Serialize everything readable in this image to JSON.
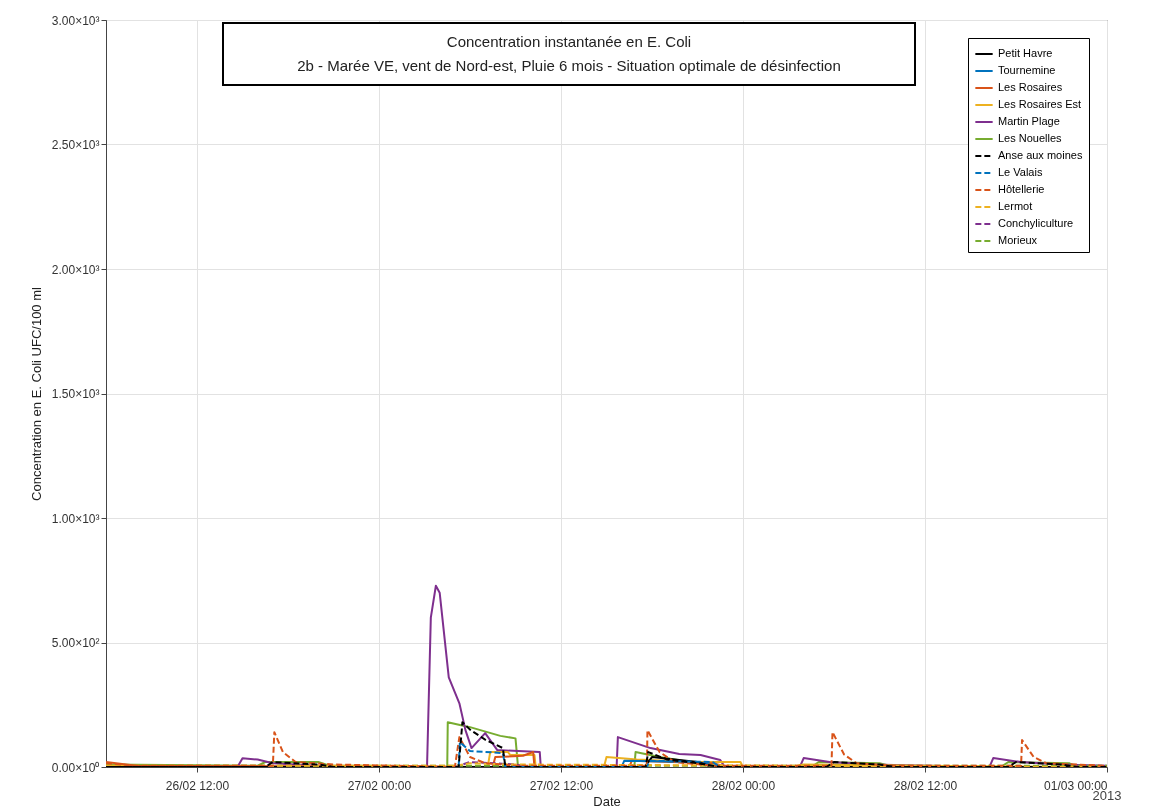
{
  "chart_data": {
    "type": "line",
    "title": "Concentration instantanée en E. Coli",
    "subtitle": "2b - Marée VE, vent de Nord-est, Pluie 6 mois - Situation optimale de désinfection",
    "xlabel": "Date",
    "ylabel": "Concentration en E. Coli UFC/100 ml",
    "annotations": [
      "2013"
    ],
    "xlim": [
      "2013-02-26T06:00",
      "2013-03-01T00:00"
    ],
    "xticks": [
      {
        "value": "2013-02-26T12:00",
        "label": "26/02 12:00"
      },
      {
        "value": "2013-02-27T00:00",
        "label": "27/02 00:00"
      },
      {
        "value": "2013-02-27T12:00",
        "label": "27/02 12:00"
      },
      {
        "value": "2013-02-28T00:00",
        "label": "28/02 00:00"
      },
      {
        "value": "2013-02-28T12:00",
        "label": "28/02 12:00"
      },
      {
        "value": "2013-03-01T00:00",
        "label": "01/03 00:00"
      }
    ],
    "ylim": [
      0,
      3000
    ],
    "yticks": [
      {
        "value": 0,
        "label": "0.00×10⁰"
      },
      {
        "value": 500,
        "label": "5.00×10²"
      },
      {
        "value": 1000,
        "label": "1.00×10³"
      },
      {
        "value": 1500,
        "label": "1.50×10³"
      },
      {
        "value": 2000,
        "label": "2.00×10³"
      },
      {
        "value": 2500,
        "label": "2.50×10³"
      },
      {
        "value": 3000,
        "label": "3.00×10³"
      }
    ],
    "grid": true,
    "legend": "top right",
    "marker": "none",
    "series": [
      {
        "name": "Petit Havre",
        "color": "#000000",
        "line_style": "solid",
        "x": [
          "2013-02-26T06:00",
          "2013-02-27T17:30",
          "2013-02-27T18:00",
          "2013-02-27T21:00",
          "2013-02-27T22:00",
          "2013-03-01T00:00"
        ],
        "values": [
          0,
          0,
          40,
          20,
          0,
          0
        ]
      },
      {
        "name": "Tournemine",
        "color": "#0072bd",
        "line_style": "solid",
        "x": [
          "2013-02-27T16:00",
          "2013-02-27T16:10",
          "2013-02-27T21:00",
          "2013-02-27T22:30"
        ],
        "values": [
          0,
          25,
          20,
          0
        ]
      },
      {
        "name": "Les Rosaires",
        "color": "#d95319",
        "line_style": "solid",
        "x": [
          "2013-02-26T06:00",
          "2013-02-26T08:00",
          "2013-02-27T07:30",
          "2013-02-27T07:40",
          "2013-02-27T09:30",
          "2013-02-27T10:10",
          "2013-02-27T10:15",
          "2013-02-27T16:30",
          "2013-02-27T16:40",
          "2013-02-27T22:00",
          "2013-02-27T23:00",
          "2013-03-01T00:00"
        ],
        "values": [
          20,
          5,
          0,
          40,
          45,
          60,
          0,
          0,
          25,
          15,
          0,
          0
        ]
      },
      {
        "name": "Les Rosaires Est",
        "color": "#edb120",
        "line_style": "solid",
        "x": [
          "2013-02-26T06:00",
          "2013-02-27T07:10",
          "2013-02-27T07:20",
          "2013-02-27T08:30",
          "2013-02-27T08:40",
          "2013-02-27T10:15",
          "2013-02-27T10:20",
          "2013-02-27T14:50",
          "2013-02-27T15:00",
          "2013-02-27T17:00",
          "2013-02-27T21:00",
          "2013-02-27T23:50",
          "2013-02-28T00:00",
          "2013-02-28T03:00",
          "2013-02-28T04:00",
          "2013-02-28T12:00",
          "2013-03-01T00:00"
        ],
        "values": [
          5,
          0,
          60,
          60,
          48,
          48,
          0,
          0,
          40,
          30,
          20,
          20,
          0,
          0,
          10,
          5,
          0
        ]
      },
      {
        "name": "Martin Plage",
        "color": "#7e2f8e",
        "line_style": "solid",
        "x": [
          "2013-02-26T06:00",
          "2013-02-26T14:40",
          "2013-02-26T15:00",
          "2013-02-26T16:00",
          "2013-02-26T17:00",
          "2013-02-26T20:00",
          "2013-02-27T03:10",
          "2013-02-27T03:25",
          "2013-02-27T03:45",
          "2013-02-27T04:00",
          "2013-02-27T04:36",
          "2013-02-27T05:18",
          "2013-02-27T05:42",
          "2013-02-27T06:06",
          "2013-02-27T07:00",
          "2013-02-27T07:48",
          "2013-02-27T10:36",
          "2013-02-27T10:40",
          "2013-02-27T15:40",
          "2013-02-27T15:45",
          "2013-02-27T17:54",
          "2013-02-27T19:48",
          "2013-02-27T21:12",
          "2013-02-27T22:30",
          "2013-02-27T22:48",
          "2013-02-28T03:45",
          "2013-02-28T04:00",
          "2013-02-28T05:42",
          "2013-02-28T08:24",
          "2013-02-28T16:15",
          "2013-02-28T16:30",
          "2013-02-28T18:18",
          "2013-02-28T20:54",
          "2013-03-01T00:00"
        ],
        "values": [
          0,
          0,
          35,
          30,
          15,
          5,
          0,
          600,
          728,
          700,
          360,
          256,
          148,
          76,
          136,
          68,
          60,
          0,
          0,
          120,
          76,
          52,
          48,
          28,
          0,
          0,
          36,
          20,
          10,
          0,
          36,
          20,
          10,
          5
        ]
      },
      {
        "name": "Les Nouelles",
        "color": "#77ac30",
        "line_style": "solid",
        "x": [
          "2013-02-26T06:00",
          "2013-02-26T16:00",
          "2013-02-26T16:30",
          "2013-02-26T20:00",
          "2013-02-26T21:00",
          "2013-02-27T04:30",
          "2013-02-27T04:32",
          "2013-02-27T06:00",
          "2013-02-27T08:00",
          "2013-02-27T09:00",
          "2013-02-27T09:10",
          "2013-02-27T16:50",
          "2013-02-27T16:55",
          "2013-02-27T18:30",
          "2013-02-27T21:00",
          "2013-02-27T22:00",
          "2013-02-28T04:30",
          "2013-02-28T05:00",
          "2013-02-28T09:00",
          "2013-02-28T10:00",
          "2013-02-28T17:00",
          "2013-02-28T17:30",
          "2013-02-28T21:30",
          "2013-02-28T22:00",
          "2013-03-01T00:00"
        ],
        "values": [
          10,
          5,
          20,
          20,
          0,
          0,
          180,
          160,
          125,
          115,
          0,
          0,
          60,
          40,
          15,
          0,
          0,
          20,
          15,
          0,
          0,
          20,
          15,
          0,
          0
        ]
      },
      {
        "name": "Anse aux moines",
        "color": "#000000",
        "line_style": "dashed",
        "x": [
          "2013-02-26T06:00",
          "2013-02-26T16:30",
          "2013-02-26T17:00",
          "2013-02-26T20:00",
          "2013-02-26T21:00",
          "2013-02-27T05:15",
          "2013-02-27T05:30",
          "2013-02-27T06:00",
          "2013-02-27T07:00",
          "2013-02-27T08:10",
          "2013-02-27T08:20",
          "2013-02-27T17:35",
          "2013-02-27T17:45",
          "2013-02-27T19:00",
          "2013-02-27T21:00",
          "2013-02-27T22:30",
          "2013-02-28T05:30",
          "2013-02-28T06:00",
          "2013-02-28T09:00",
          "2013-02-28T10:00",
          "2013-02-28T17:30",
          "2013-02-28T18:00",
          "2013-02-28T21:00",
          "2013-02-28T22:00",
          "2013-03-01T00:00"
        ],
        "values": [
          0,
          0,
          20,
          10,
          0,
          0,
          180,
          150,
          110,
          76,
          0,
          0,
          60,
          30,
          15,
          0,
          0,
          20,
          10,
          0,
          0,
          20,
          10,
          0,
          0
        ]
      },
      {
        "name": "Le Valais",
        "color": "#0072bd",
        "line_style": "dashed",
        "x": [
          "2013-02-27T05:15",
          "2013-02-27T05:20",
          "2013-02-27T06:00",
          "2013-02-27T08:10",
          "2013-02-27T08:20",
          "2013-02-27T17:40",
          "2013-02-27T17:50",
          "2013-02-27T22:00",
          "2013-02-27T22:30"
        ],
        "values": [
          0,
          100,
          64,
          56,
          0,
          0,
          25,
          20,
          0
        ]
      },
      {
        "name": "Hôtellerie",
        "color": "#d95319",
        "line_style": "dashed",
        "x": [
          "2013-02-26T06:00",
          "2013-02-26T08:00",
          "2013-02-26T17:00",
          "2013-02-26T17:06",
          "2013-02-26T17:40",
          "2013-02-26T18:30",
          "2013-02-26T21:00",
          "2013-02-27T05:00",
          "2013-02-27T05:18",
          "2013-02-27T06:00",
          "2013-02-27T07:00",
          "2013-02-27T09:00",
          "2013-02-27T17:40",
          "2013-02-27T17:42",
          "2013-02-27T18:30",
          "2013-02-27T19:30",
          "2013-02-27T22:00",
          "2013-02-28T05:50",
          "2013-02-28T05:54",
          "2013-02-28T06:40",
          "2013-02-28T07:30",
          "2013-02-28T10:00",
          "2013-02-28T18:20",
          "2013-02-28T18:24",
          "2013-02-28T19:10",
          "2013-02-28T20:00",
          "2013-03-01T00:00"
        ],
        "values": [
          15,
          5,
          5,
          140,
          60,
          20,
          10,
          0,
          120,
          40,
          15,
          5,
          5,
          148,
          60,
          20,
          5,
          5,
          140,
          50,
          15,
          5,
          5,
          108,
          40,
          15,
          5
        ]
      },
      {
        "name": "Lermot",
        "color": "#edb120",
        "line_style": "dashed",
        "x": [
          "2013-02-26T06:00",
          "2013-02-27T05:00",
          "2013-02-27T06:00",
          "2013-02-27T09:00",
          "2013-03-01T00:00"
        ],
        "values": [
          5,
          5,
          15,
          10,
          0
        ]
      },
      {
        "name": "Conchyliculture",
        "color": "#7e2f8e",
        "line_style": "dashed",
        "x": [
          "2013-02-27T05:00",
          "2013-02-27T06:00",
          "2013-02-27T09:00",
          "2013-02-27T10:00"
        ],
        "values": [
          0,
          20,
          10,
          0
        ]
      },
      {
        "name": "Morieux",
        "color": "#77ac30",
        "line_style": "dashed",
        "x": [
          "2013-02-26T06:00",
          "2013-02-27T12:00",
          "2013-03-01T00:00"
        ],
        "values": [
          5,
          5,
          5
        ]
      }
    ]
  }
}
